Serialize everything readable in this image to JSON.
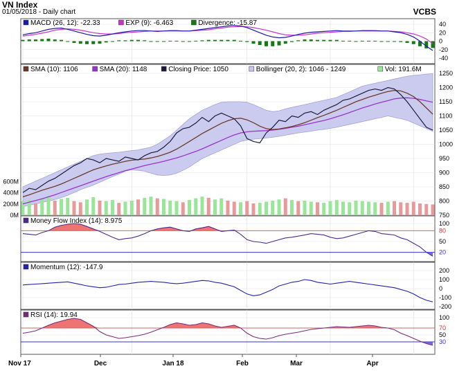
{
  "header": {
    "title": "VN Index",
    "subtitle": "01/05/2018 - Daily chart",
    "brand": "VCBS"
  },
  "colors": {
    "macd": "#1a1aa8",
    "exp": "#cc33cc",
    "divergence": "#147a14",
    "sma10": "#6b3a2a",
    "sma20": "#9933cc",
    "close": "#1a1a3a",
    "bollinger_fill": "#c6c6ee",
    "bollinger_line": "#9a9ad8",
    "vol_up": "#99e699",
    "vol_down": "#e89a9a",
    "mfi": "#4b2b8a",
    "momentum": "#2222aa",
    "rsi": "#7a2a7a",
    "zone_fill": "#ec5a5a",
    "ref_line": "#cc6666",
    "ref_low": "#3333cc"
  },
  "chart_data": [
    {
      "type": "line",
      "name": "macd_panel",
      "legend": [
        {
          "label": "MACD (26, 12): -22.33",
          "color": "#1a1aa8"
        },
        {
          "label": "EXP (9): -6.463",
          "color": "#cc33cc"
        },
        {
          "label": "Divergence: -15.87",
          "color": "#147a14"
        }
      ],
      "ylim": [
        -40,
        40
      ],
      "yticks": [
        "40",
        "20",
        "0",
        "-20",
        "-40"
      ],
      "macd": [
        15,
        18,
        20,
        24,
        28,
        30,
        31,
        28,
        24,
        20,
        16,
        13,
        12,
        14,
        17,
        20,
        22,
        24,
        25,
        25,
        24,
        23,
        24,
        25,
        25,
        24,
        24,
        26,
        28,
        30,
        32,
        34,
        36,
        37,
        36,
        32,
        26,
        20,
        14,
        10,
        8,
        9,
        12,
        16,
        19,
        21,
        22,
        23,
        24,
        25,
        24,
        24,
        24,
        25,
        25,
        25,
        24,
        24,
        22,
        20,
        16,
        10,
        0,
        -12,
        -22
      ],
      "exp": [
        12,
        14,
        16,
        19,
        22,
        26,
        28,
        29,
        28,
        26,
        23,
        20,
        18,
        17,
        17,
        18,
        20,
        21,
        22,
        23,
        24,
        24,
        24,
        24,
        24,
        24,
        24,
        25,
        26,
        27,
        29,
        31,
        33,
        34,
        35,
        34,
        32,
        29,
        26,
        22,
        18,
        15,
        14,
        14,
        15,
        17,
        19,
        20,
        21,
        22,
        23,
        23,
        24,
        24,
        24,
        24,
        24,
        24,
        23,
        22,
        20,
        17,
        12,
        5,
        -6
      ],
      "divergence": [
        3,
        4,
        4,
        5,
        6,
        4,
        3,
        -1,
        -4,
        -6,
        -7,
        -7,
        -6,
        -3,
        0,
        2,
        2,
        3,
        3,
        2,
        0,
        -1,
        0,
        1,
        1,
        0,
        0,
        1,
        2,
        3,
        3,
        3,
        3,
        3,
        1,
        -2,
        -6,
        -9,
        -12,
        -12,
        -10,
        -6,
        -2,
        2,
        4,
        4,
        3,
        3,
        3,
        3,
        1,
        1,
        0,
        1,
        1,
        1,
        0,
        0,
        -1,
        -2,
        -4,
        -7,
        -12,
        -17,
        -16
      ]
    },
    {
      "type": "line",
      "name": "price_panel",
      "legend": [
        {
          "label": "SMA (10): 1106",
          "color": "#6b3a2a"
        },
        {
          "label": "SMA (20): 1148",
          "color": "#9933cc"
        },
        {
          "label": "Closing Price: 1050",
          "color": "#1a1a3a"
        },
        {
          "label": "Bollinger (20, 2): 1046 - 1249",
          "color": "#c6c6ee"
        },
        {
          "label": "Vol: 191.6M",
          "color": "#99e699"
        }
      ],
      "price_ylim": [
        750,
        1250
      ],
      "price_yticks": [
        "1250",
        "1200",
        "1150",
        "1100",
        "1050",
        "1000",
        "950",
        "900",
        "850",
        "800",
        "750"
      ],
      "volume_ylim": [
        0,
        800
      ],
      "volume_yticks": [
        "600M",
        "400M",
        "200M",
        "0M"
      ],
      "x_labels": [
        "Nov 17",
        "Dec",
        "Jan 18",
        "Feb",
        "Mar",
        "Apr"
      ],
      "close": [
        830,
        845,
        840,
        855,
        870,
        880,
        895,
        910,
        925,
        935,
        950,
        945,
        935,
        950,
        945,
        940,
        955,
        950,
        945,
        960,
        970,
        975,
        990,
        1010,
        1040,
        1055,
        1060,
        1075,
        1095,
        1080,
        1100,
        1110,
        1100,
        1090,
        1065,
        1020,
        1010,
        1005,
        1040,
        1060,
        1085,
        1080,
        1100,
        1095,
        1110,
        1115,
        1105,
        1120,
        1130,
        1140,
        1155,
        1160,
        1170,
        1180,
        1190,
        1195,
        1190,
        1200,
        1195,
        1175,
        1150,
        1120,
        1090,
        1060,
        1050
      ],
      "sma10": [
        815,
        822,
        830,
        838,
        845,
        852,
        860,
        870,
        880,
        890,
        900,
        910,
        917,
        924,
        930,
        935,
        940,
        944,
        946,
        948,
        952,
        957,
        964,
        972,
        983,
        996,
        1010,
        1024,
        1038,
        1050,
        1062,
        1074,
        1083,
        1090,
        1092,
        1086,
        1076,
        1064,
        1055,
        1052,
        1054,
        1058,
        1063,
        1069,
        1076,
        1085,
        1094,
        1102,
        1111,
        1120,
        1130,
        1140,
        1150,
        1158,
        1166,
        1173,
        1180,
        1186,
        1190,
        1188,
        1180,
        1168,
        1150,
        1128,
        1106
      ],
      "sma20": [
        790,
        796,
        802,
        808,
        815,
        822,
        830,
        838,
        846,
        854,
        862,
        870,
        878,
        886,
        893,
        900,
        907,
        913,
        919,
        925,
        930,
        935,
        940,
        946,
        952,
        959,
        967,
        975,
        984,
        994,
        1004,
        1014,
        1024,
        1033,
        1040,
        1044,
        1046,
        1047,
        1048,
        1050,
        1053,
        1056,
        1060,
        1064,
        1069,
        1074,
        1079,
        1084,
        1090,
        1097,
        1104,
        1112,
        1120,
        1128,
        1135,
        1142,
        1148,
        1154,
        1160,
        1163,
        1164,
        1162,
        1158,
        1153,
        1148
      ],
      "boll_upper": [
        850,
        860,
        870,
        880,
        890,
        900,
        910,
        920,
        930,
        940,
        950,
        960,
        965,
        968,
        970,
        972,
        975,
        978,
        980,
        985,
        990,
        1000,
        1015,
        1030,
        1050,
        1070,
        1090,
        1105,
        1120,
        1130,
        1140,
        1148,
        1150,
        1150,
        1150,
        1148,
        1140,
        1130,
        1120,
        1115,
        1118,
        1125,
        1130,
        1135,
        1140,
        1145,
        1150,
        1155,
        1160,
        1165,
        1175,
        1185,
        1195,
        1205,
        1210,
        1215,
        1220,
        1225,
        1230,
        1235,
        1240,
        1243,
        1245,
        1247,
        1249
      ],
      "boll_lower": [
        780,
        785,
        790,
        795,
        800,
        805,
        812,
        820,
        830,
        840,
        848,
        856,
        866,
        876,
        886,
        895,
        905,
        910,
        908,
        905,
        898,
        892,
        890,
        892,
        898,
        908,
        920,
        935,
        950,
        960,
        970,
        980,
        990,
        1000,
        1010,
        1015,
        1018,
        1020,
        1022,
        1025,
        1028,
        1032,
        1036,
        1040,
        1043,
        1046,
        1050,
        1053,
        1056,
        1060,
        1065,
        1070,
        1075,
        1080,
        1085,
        1090,
        1095,
        1100,
        1095,
        1090,
        1085,
        1075,
        1065,
        1055,
        1046
      ],
      "volume": [
        250,
        270,
        210,
        300,
        340,
        260,
        290,
        310,
        250,
        230,
        280,
        320,
        260,
        250,
        270,
        220,
        240,
        260,
        280,
        310,
        330,
        300,
        290,
        260,
        250,
        230,
        270,
        300,
        330,
        310,
        280,
        300,
        260,
        240,
        230,
        250,
        210,
        220,
        240,
        260,
        280,
        300,
        270,
        250,
        260,
        240,
        230,
        220,
        250,
        270,
        240,
        230,
        260,
        250,
        240,
        230,
        220,
        240,
        250,
        230,
        220,
        240,
        210,
        200,
        192
      ],
      "volume_up": [
        true,
        true,
        false,
        true,
        true,
        false,
        true,
        true,
        false,
        false,
        true,
        true,
        false,
        true,
        true,
        false,
        true,
        true,
        false,
        true,
        true,
        false,
        true,
        true,
        true,
        false,
        true,
        true,
        true,
        false,
        true,
        true,
        false,
        false,
        true,
        false,
        false,
        true,
        true,
        true,
        true,
        false,
        true,
        false,
        true,
        true,
        false,
        true,
        true,
        true,
        true,
        true,
        true,
        true,
        true,
        true,
        false,
        true,
        false,
        false,
        false,
        false,
        false,
        false,
        false
      ]
    },
    {
      "type": "line",
      "name": "mfi_panel",
      "legend": [
        {
          "label": "Money Flow Index (14): 8.975",
          "color": "#4b2b8a"
        }
      ],
      "ylim": [
        0,
        100
      ],
      "yticks": [
        "100",
        "80",
        "50",
        "20"
      ],
      "upper": 80,
      "lower": 20,
      "values": [
        72,
        70,
        68,
        75,
        80,
        90,
        95,
        98,
        100,
        98,
        92,
        85,
        78,
        70,
        62,
        55,
        58,
        60,
        65,
        72,
        80,
        85,
        88,
        90,
        85,
        80,
        78,
        85,
        88,
        92,
        85,
        78,
        80,
        82,
        70,
        55,
        50,
        48,
        45,
        50,
        55,
        60,
        62,
        65,
        68,
        72,
        70,
        68,
        62,
        58,
        60,
        65,
        70,
        75,
        80,
        78,
        72,
        70,
        68,
        60,
        55,
        45,
        35,
        20,
        9
      ]
    },
    {
      "type": "line",
      "name": "momentum_panel",
      "legend": [
        {
          "label": "Momentum (12): -147.9",
          "color": "#2222aa"
        }
      ],
      "ylim": [
        -200,
        200
      ],
      "yticks": [
        "200",
        "100",
        "0",
        "-100",
        "-200"
      ],
      "values": [
        40,
        45,
        50,
        55,
        60,
        65,
        70,
        75,
        60,
        45,
        30,
        20,
        10,
        15,
        30,
        45,
        50,
        60,
        70,
        75,
        80,
        75,
        70,
        60,
        55,
        60,
        70,
        80,
        90,
        85,
        70,
        60,
        40,
        20,
        -20,
        -60,
        -80,
        -70,
        -40,
        -10,
        30,
        50,
        70,
        80,
        100,
        90,
        70,
        60,
        50,
        60,
        70,
        80,
        70,
        60,
        50,
        40,
        30,
        20,
        10,
        -10,
        -30,
        -60,
        -100,
        -130,
        -148
      ]
    },
    {
      "type": "line",
      "name": "rsi_panel",
      "legend": [
        {
          "label": "RSI (14): 19.94",
          "color": "#7a2a7a"
        }
      ],
      "ylim": [
        0,
        100
      ],
      "yticks": [
        "100",
        "70",
        "50",
        "30"
      ],
      "upper": 70,
      "lower": 30,
      "values": [
        55,
        58,
        62,
        70,
        78,
        85,
        90,
        95,
        98,
        95,
        85,
        75,
        60,
        50,
        45,
        40,
        42,
        45,
        48,
        52,
        58,
        65,
        72,
        80,
        85,
        82,
        78,
        80,
        85,
        82,
        76,
        72,
        75,
        78,
        70,
        55,
        45,
        40,
        38,
        42,
        48,
        52,
        55,
        58,
        62,
        66,
        68,
        70,
        72,
        74,
        73,
        72,
        74,
        76,
        78,
        76,
        72,
        70,
        65,
        55,
        48,
        40,
        32,
        25,
        20
      ]
    }
  ]
}
